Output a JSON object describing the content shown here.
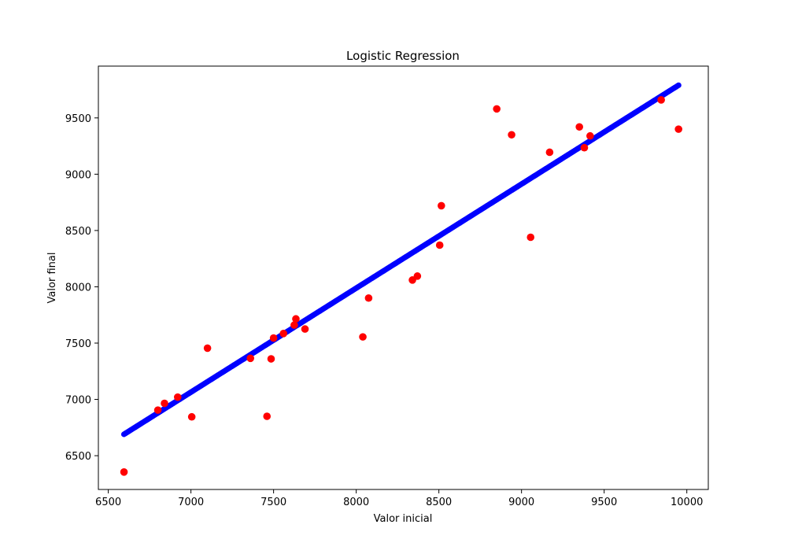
{
  "chart_data": {
    "type": "scatter",
    "title": "Logistic Regression",
    "xlabel": "Valor inicial",
    "ylabel": "Valor final",
    "xlim": [
      6440,
      10130
    ],
    "ylim": [
      6200,
      9960
    ],
    "xticks": [
      6500,
      7000,
      7500,
      8000,
      8500,
      9000,
      9500,
      10000
    ],
    "xtick_labels": [
      "6500",
      "7000",
      "7500",
      "8000",
      "8500",
      "9000",
      "9500",
      "10000"
    ],
    "yticks": [
      6500,
      7000,
      7500,
      8000,
      8500,
      9000,
      9500
    ],
    "ytick_labels": [
      "6500",
      "7000",
      "7500",
      "8000",
      "8500",
      "9000",
      "9500"
    ],
    "grid": false,
    "series": [
      {
        "kind": "scatter",
        "color": "#ff0000",
        "points": [
          [
            6595,
            6355
          ],
          [
            6800,
            6905
          ],
          [
            6840,
            6965
          ],
          [
            6920,
            7020
          ],
          [
            7005,
            6845
          ],
          [
            7100,
            7455
          ],
          [
            7360,
            7365
          ],
          [
            7460,
            6850
          ],
          [
            7485,
            7360
          ],
          [
            7500,
            7545
          ],
          [
            7560,
            7585
          ],
          [
            7625,
            7660
          ],
          [
            7635,
            7715
          ],
          [
            7690,
            7625
          ],
          [
            8040,
            7555
          ],
          [
            8075,
            7900
          ],
          [
            8340,
            8060
          ],
          [
            8370,
            8095
          ],
          [
            8505,
            8370
          ],
          [
            8515,
            8720
          ],
          [
            8850,
            9580
          ],
          [
            8940,
            9350
          ],
          [
            9055,
            8440
          ],
          [
            9170,
            9195
          ],
          [
            9350,
            9420
          ],
          [
            9380,
            9235
          ],
          [
            9415,
            9340
          ],
          [
            9845,
            9660
          ],
          [
            9950,
            9400
          ]
        ]
      },
      {
        "kind": "regression_line",
        "color": "#0000ff",
        "x": [
          6595,
          9950
        ],
        "y": [
          6690,
          9790
        ]
      }
    ]
  }
}
